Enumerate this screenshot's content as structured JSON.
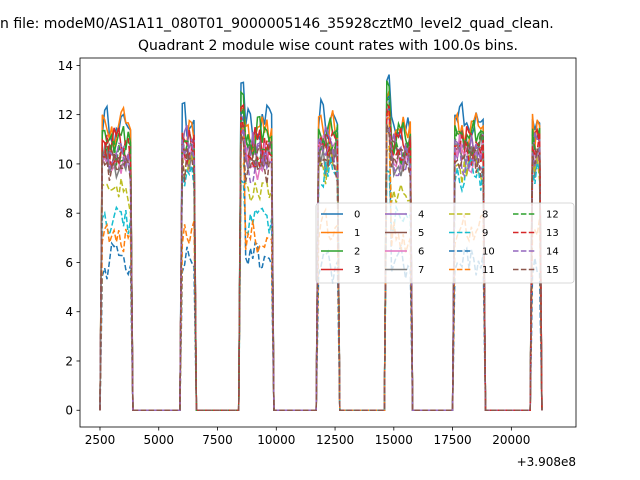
{
  "suptitle": "n file: modeM0/AS1A11_080T01_9000005146_35928cztM0_level2_quad_clean.",
  "chart_data": {
    "type": "line",
    "title": "Quadrant 2 module wise count rates with 100.0s bins.",
    "xlabel": "",
    "ylabel": "",
    "x_offset_label": "+3.908e8",
    "xlim": [
      1650,
      22750
    ],
    "ylim": [
      -0.68,
      14.3
    ],
    "xticks": [
      2500,
      5000,
      7500,
      10000,
      12500,
      15000,
      17500,
      20000
    ],
    "xtick_labels": [
      "2500",
      "5000",
      "7500",
      "10000",
      "12500",
      "15000",
      "17500",
      "20000"
    ],
    "yticks": [
      0,
      2,
      4,
      6,
      8,
      10,
      12,
      14
    ],
    "ytick_labels": [
      "0",
      "2",
      "4",
      "6",
      "8",
      "10",
      "12",
      "14"
    ],
    "grid": false,
    "legend": {
      "position": "center-right",
      "columns": 4
    },
    "on_intervals": [
      [
        2550,
        3850,
        "a"
      ],
      [
        5920,
        6550,
        "b"
      ],
      [
        8470,
        9820,
        "a"
      ],
      [
        11750,
        12650,
        "b"
      ],
      [
        14650,
        15780,
        "a"
      ],
      [
        17550,
        18830,
        "b"
      ],
      [
        20850,
        21250,
        "b"
      ]
    ],
    "series": [
      {
        "name": "0",
        "color": "#1f77b4",
        "dash": "solid",
        "base_a": 11.5,
        "base_b": 11.8,
        "peak": 13.5
      },
      {
        "name": "1",
        "color": "#ff7f0e",
        "dash": "solid",
        "base_a": 11.4,
        "base_b": 11.3,
        "peak": 12.8
      },
      {
        "name": "2",
        "color": "#2ca02c",
        "dash": "solid",
        "base_a": 11.1,
        "base_b": 11.2,
        "peak": 13.2
      },
      {
        "name": "3",
        "color": "#d62728",
        "dash": "solid",
        "base_a": 10.8,
        "base_b": 10.9,
        "peak": 12.6
      },
      {
        "name": "4",
        "color": "#9467bd",
        "dash": "solid",
        "base_a": 10.5,
        "base_b": 10.7,
        "peak": 12.2
      },
      {
        "name": "5",
        "color": "#8c564b",
        "dash": "solid",
        "base_a": 10.3,
        "base_b": 10.5,
        "peak": 12.0
      },
      {
        "name": "6",
        "color": "#e377c2",
        "dash": "solid",
        "base_a": 10.2,
        "base_b": 10.4,
        "peak": 11.8
      },
      {
        "name": "7",
        "color": "#7f7f7f",
        "dash": "solid",
        "base_a": 10.0,
        "base_b": 10.2,
        "peak": 11.5
      },
      {
        "name": "8",
        "color": "#bcbd22",
        "dash": "dashed",
        "base_a": 8.8,
        "base_b": 10.0,
        "peak": 10.5
      },
      {
        "name": "9",
        "color": "#17becf",
        "dash": "dashed",
        "base_a": 7.9,
        "base_b": 9.7,
        "peak": 9.5
      },
      {
        "name": "10",
        "color": "#1f77b4",
        "dash": "dashed",
        "base_a": 6.1,
        "base_b": 6.0,
        "peak": 12.5
      },
      {
        "name": "11",
        "color": "#ff7f0e",
        "dash": "dashed",
        "base_a": 7.0,
        "base_b": 7.3,
        "peak": 11.9
      },
      {
        "name": "12",
        "color": "#2ca02c",
        "dash": "dashed",
        "base_a": 10.6,
        "base_b": 10.8,
        "peak": 12.4
      },
      {
        "name": "13",
        "color": "#d62728",
        "dash": "dashed",
        "base_a": 10.4,
        "base_b": 10.6,
        "peak": 12.1
      },
      {
        "name": "14",
        "color": "#9467bd",
        "dash": "dashed",
        "base_a": 10.1,
        "base_b": 10.3,
        "peak": 11.7
      },
      {
        "name": "15",
        "color": "#8c564b",
        "dash": "dashed",
        "base_a": 10.0,
        "base_b": 10.1,
        "peak": 11.4
      }
    ]
  }
}
